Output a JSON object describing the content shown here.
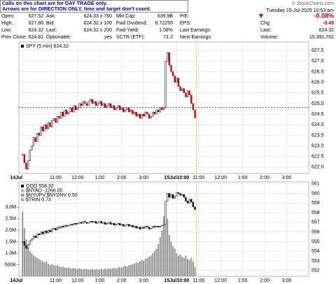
{
  "notice": [
    "Calls on this chart are for DAY TRADE only.",
    "Arrows are for DIRECTION ONLY, time and target don't count."
  ],
  "header": {
    "copyright": "© StockCharts.com",
    "date": "Tuesday 15-Jul-2025 10:53 am"
  },
  "quote": {
    "columns": [
      [
        {
          "label": "Open:",
          "value": "627.52"
        },
        {
          "label": "High:",
          "value": "627.86"
        },
        {
          "label": "Low:",
          "value": "624.32"
        },
        {
          "label": "Prev Close:",
          "value": "624.81"
        }
      ],
      [
        {
          "label": "Ask:",
          "value": "624.33 x 760"
        },
        {
          "label": "Bid:",
          "value": "624.32 x 100"
        },
        {
          "label": "Last:",
          "value": "624.32 x 200"
        },
        {
          "label": "Optionable:",
          "value": "yes"
        }
      ],
      [
        {
          "label": "Mkt Cap:",
          "value": "639.9B"
        },
        {
          "label": "Fwd Dividend:",
          "value": "6.72255"
        },
        {
          "label": "Fwd Yield:",
          "value": "1.08%"
        },
        {
          "label": "SCTR (ETF):",
          "value": "71.2"
        }
      ],
      [
        {
          "label": "P/E:"
        },
        {
          "label": "EPS:"
        },
        {
          "label": "Last Earnings:"
        },
        {
          "label": "Next Earnings:"
        }
      ],
      [
        {
          "value": "-0.08%"
        },
        {
          "label": "Chg:",
          "value": "-0.49"
        },
        {
          "label": "Last:",
          "value": "624.32"
        },
        {
          "label": "Volume:",
          "value": "15,391,702"
        }
      ]
    ]
  },
  "chart_data": [
    {
      "type": "candlestick",
      "title": "SPY (5 min) 624.32",
      "xlim": [
        -2,
        156
      ],
      "xticks": [
        {
          "value": 0,
          "label": "14Jul"
        },
        {
          "value": 18,
          "label": "11:00"
        },
        {
          "value": 30,
          "label": "12:00"
        },
        {
          "value": 42,
          "label": "1:00"
        },
        {
          "value": 54,
          "label": "2:00"
        },
        {
          "value": 66,
          "label": "3:00"
        },
        {
          "value": 84,
          "label": "15Jul10:00"
        },
        {
          "value": 96,
          "label": "11:00"
        },
        {
          "value": 108,
          "label": "12:00"
        },
        {
          "value": 120,
          "label": "1:00"
        },
        {
          "value": 132,
          "label": "2:00"
        },
        {
          "value": 144,
          "label": "3:00"
        }
      ],
      "ylim": [
        621.7,
        627.9
      ],
      "yticks": [
        {
          "value": 622,
          "label": "622.0"
        },
        622.5,
        {
          "value": 623,
          "label": "623.0"
        },
        623.5,
        {
          "value": 624,
          "label": "624.0"
        },
        624.5,
        {
          "value": 625,
          "label": "625.0"
        },
        625.5,
        {
          "value": 626,
          "label": "626.0"
        },
        626.5,
        {
          "value": 627,
          "label": "627.0"
        },
        627.5
      ],
      "grid": true,
      "hline": 624.81,
      "hline_color": "#1a1a80",
      "series": [
        {
          "color": "#000000",
          "down_color": "#cc0000",
          "values": [
            622.6,
            622.2,
            621.9,
            622.3,
            622.8,
            623.0,
            623.4,
            623.2,
            623.6,
            623.5,
            623.9,
            623.7,
            624.0,
            623.8,
            624.1,
            623.9,
            624.2,
            624.3,
            624.1,
            624.4,
            624.3,
            624.6,
            624.4,
            624.7,
            624.5,
            624.6,
            624.8,
            624.6,
            624.9,
            624.7,
            624.8,
            625.0,
            624.9,
            625.1,
            625.0,
            624.9,
            625.1,
            625.2,
            625.0,
            625.1,
            624.9,
            625.0,
            625.1,
            624.9,
            625.0,
            624.8,
            624.9,
            625.0,
            624.8,
            624.9,
            624.7,
            624.8,
            624.9,
            624.7,
            624.8,
            624.6,
            624.7,
            624.8,
            624.6,
            624.7,
            624.5,
            624.6,
            624.4,
            624.5,
            624.3,
            624.5,
            624.4,
            624.6,
            624.5,
            624.3,
            624.4,
            624.6,
            624.5,
            624.7,
            624.6,
            624.8,
            624.7,
            624.8,
            627.0,
            627.4,
            626.8,
            626.5,
            626.3,
            626.0,
            626.2,
            625.8,
            625.6,
            625.7,
            625.5,
            625.3,
            625.6,
            625.4,
            625.0,
            624.7,
            624.32
          ]
        }
      ]
    },
    {
      "type": "candlestick",
      "annotations": [
        "$NYAD -1266.00",
        "$NYUPV:$NYDNV 0.50",
        "$TRIN 0.73"
      ],
      "xlim": [
        -2,
        156
      ],
      "xticks": [
        {
          "value": 0,
          "label": "14Jul"
        },
        {
          "value": 18,
          "label": "11:00"
        },
        {
          "value": 30,
          "label": "12:00"
        },
        {
          "value": 42,
          "label": "1:00"
        },
        {
          "value": 54,
          "label": "2:00"
        },
        {
          "value": 66,
          "label": "3:00"
        },
        {
          "value": 84,
          "label": "15Jul10:00"
        },
        {
          "value": 96,
          "label": "11:00"
        },
        {
          "value": 108,
          "label": "12:00"
        },
        {
          "value": 120,
          "label": "1:00"
        },
        {
          "value": 132,
          "label": "2:00"
        },
        {
          "value": 144,
          "label": "3:00"
        }
      ],
      "ylim": [
        551.4,
        561.2
      ],
      "yticks": [
        552,
        553,
        554,
        555,
        556,
        557,
        558,
        559,
        560,
        561
      ],
      "y2lim": [
        0,
        4100000
      ],
      "y2ticks": [
        {
          "value": 500000,
          "label": "500K"
        },
        {
          "value": 1000000,
          "label": "1.0M"
        },
        {
          "value": 1500000,
          "label": "1.5M"
        },
        {
          "value": 2000000,
          "label": "2.0M"
        },
        {
          "value": 2500000,
          "label": "2.5M"
        },
        {
          "value": 3000000,
          "label": "3.0M"
        }
      ],
      "grid": true,
      "series": [
        {
          "name": "QQQ 558.32",
          "color": "#000000",
          "down_color": "#000000",
          "values": [
            555.0,
            554.6,
            554.3,
            554.7,
            555.1,
            555.3,
            555.6,
            555.4,
            555.8,
            555.7,
            556.0,
            555.8,
            556.1,
            555.9,
            556.2,
            556.0,
            556.3,
            556.4,
            556.2,
            556.5,
            556.4,
            556.6,
            556.5,
            556.7,
            556.6,
            556.7,
            556.8,
            556.7,
            556.9,
            556.8,
            556.9,
            557.0,
            556.9,
            557.1,
            557.0,
            556.9,
            557.0,
            557.1,
            557.0,
            557.1,
            556.9,
            557.0,
            557.1,
            556.9,
            557.0,
            556.8,
            556.9,
            557.0,
            556.8,
            556.9,
            556.7,
            556.8,
            556.9,
            556.7,
            556.8,
            556.6,
            556.7,
            556.8,
            556.6,
            556.7,
            556.5,
            556.6,
            556.4,
            556.5,
            556.3,
            556.5,
            556.4,
            556.6,
            556.5,
            556.3,
            556.4,
            556.6,
            556.5,
            556.6,
            556.5,
            556.6,
            556.7,
            556.8,
            559.2,
            560.0,
            559.6,
            559.9,
            559.5,
            559.7,
            560.1,
            560.0,
            559.8,
            559.9,
            559.6,
            559.2,
            559.0,
            559.4,
            559.1,
            558.6,
            558.32
          ]
        },
        {
          "axis": "y2",
          "color": "#8c8c8c",
          "values": [
            2800000,
            2100000,
            1600000,
            1300000,
            1100000,
            1000000,
            900000,
            850000,
            800000,
            750000,
            700000,
            650000,
            600000,
            650000,
            550000,
            500000,
            520000,
            480000,
            450000,
            470000,
            430000,
            400000,
            420000,
            380000,
            360000,
            380000,
            350000,
            340000,
            360000,
            330000,
            320000,
            340000,
            310000,
            300000,
            330000,
            310000,
            290000,
            300000,
            320000,
            280000,
            300000,
            310000,
            290000,
            320000,
            300000,
            330000,
            310000,
            340000,
            320000,
            350000,
            360000,
            340000,
            380000,
            400000,
            370000,
            420000,
            450000,
            430000,
            480000,
            500000,
            520000,
            550000,
            600000,
            580000,
            650000,
            700000,
            680000,
            750000,
            800000,
            850000,
            900000,
            1000000,
            1100000,
            1200000,
            1400000,
            1700000,
            2000000,
            2600000,
            3100000,
            2500000,
            1800000,
            1500000,
            1300000,
            1200000,
            1000000,
            900000,
            950000,
            850000,
            800000,
            900000,
            750000,
            700000,
            800000,
            650000,
            400000
          ]
        }
      ]
    }
  ]
}
